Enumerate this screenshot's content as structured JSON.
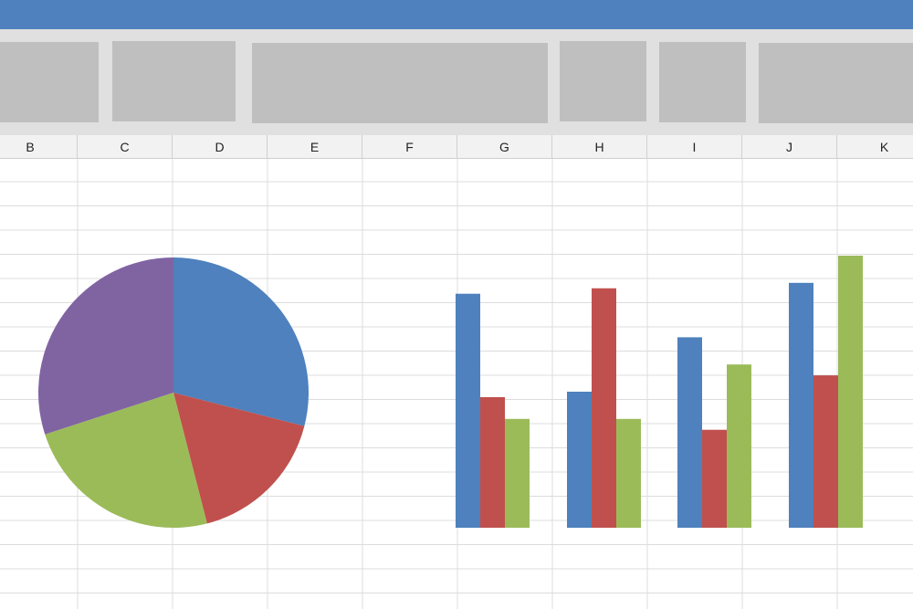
{
  "spreadsheet": {
    "columns": [
      "B",
      "C",
      "D",
      "E",
      "F",
      "G",
      "H",
      "I",
      "J",
      "K"
    ]
  },
  "colors": {
    "titlebar": "#4e81bd",
    "ribbon": "#e0e0e0",
    "ribbon_block": "#bfbfbf",
    "grid_line": "#dcdcdc",
    "blue": "#4e81bd",
    "red": "#c0504d",
    "green": "#9bbb59",
    "purple": "#8064a2"
  },
  "chart_data": [
    {
      "type": "pie",
      "slices": [
        {
          "value": 29,
          "color": "#4e81bd"
        },
        {
          "value": 17,
          "color": "#c0504d"
        },
        {
          "value": 24,
          "color": "#9bbb59"
        },
        {
          "value": 30,
          "color": "#8064a2"
        }
      ]
    },
    {
      "type": "bar",
      "categories": [
        "",
        "",
        "",
        ""
      ],
      "ylim": [
        0,
        100
      ],
      "series": [
        {
          "color": "#4e81bd",
          "values": [
            86,
            50,
            70,
            90
          ]
        },
        {
          "color": "#c0504d",
          "values": [
            48,
            88,
            36,
            56
          ]
        },
        {
          "color": "#9bbb59",
          "values": [
            40,
            40,
            60,
            100
          ]
        }
      ]
    }
  ]
}
